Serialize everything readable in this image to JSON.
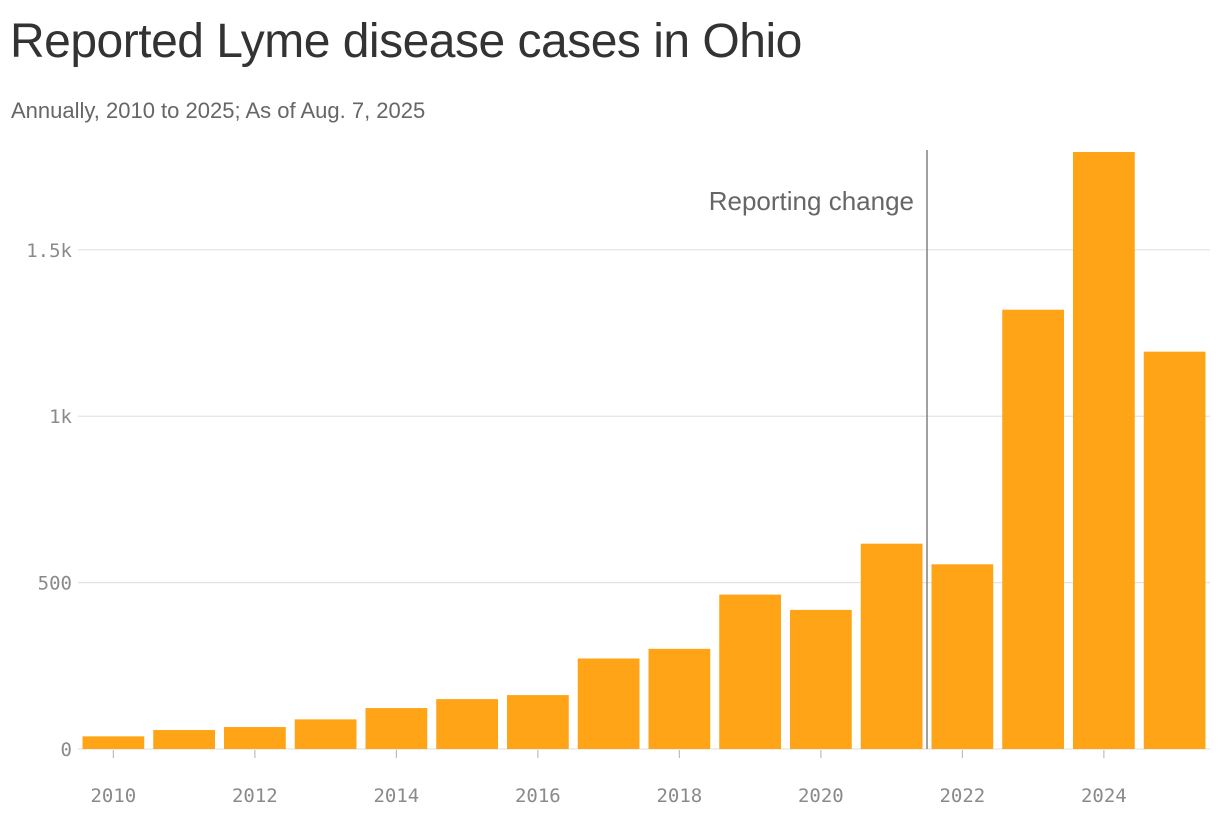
{
  "title": "Reported Lyme disease cases in Ohio",
  "subtitle": "Annually, 2010 to 2025; As of Aug. 7, 2025",
  "colors": {
    "bar": "#FFA417",
    "grid": "#e3e3e3",
    "annotation_line": "#808080"
  },
  "chart_data": {
    "type": "bar",
    "x": [
      2010,
      2011,
      2012,
      2013,
      2014,
      2015,
      2016,
      2017,
      2018,
      2019,
      2020,
      2021,
      2022,
      2023,
      2024,
      2025
    ],
    "values": [
      38,
      57,
      66,
      89,
      123,
      150,
      162,
      272,
      301,
      464,
      418,
      617,
      555,
      1320,
      1794,
      1194
    ],
    "title": "Reported Lyme disease cases in Ohio",
    "subtitle": "Annually, 2010 to 2025; As of Aug. 7, 2025",
    "xlabel": "",
    "ylabel": "",
    "ylim": [
      0,
      1800
    ],
    "xlim": [
      2009.5,
      2025.5
    ],
    "y_ticks": [
      0,
      500,
      1000,
      1500
    ],
    "y_tick_labels": [
      "0",
      "500",
      "1k",
      "1.5k"
    ],
    "x_ticks": [
      2010,
      2012,
      2014,
      2016,
      2018,
      2020,
      2022,
      2024
    ],
    "x_tick_labels": [
      "2010",
      "2012",
      "2014",
      "2016",
      "2018",
      "2020",
      "2022",
      "2024"
    ],
    "grid": "horizontal",
    "legend": "none",
    "annotations": [
      {
        "type": "vline",
        "x": 2021.5,
        "label": "Reporting change"
      }
    ]
  }
}
